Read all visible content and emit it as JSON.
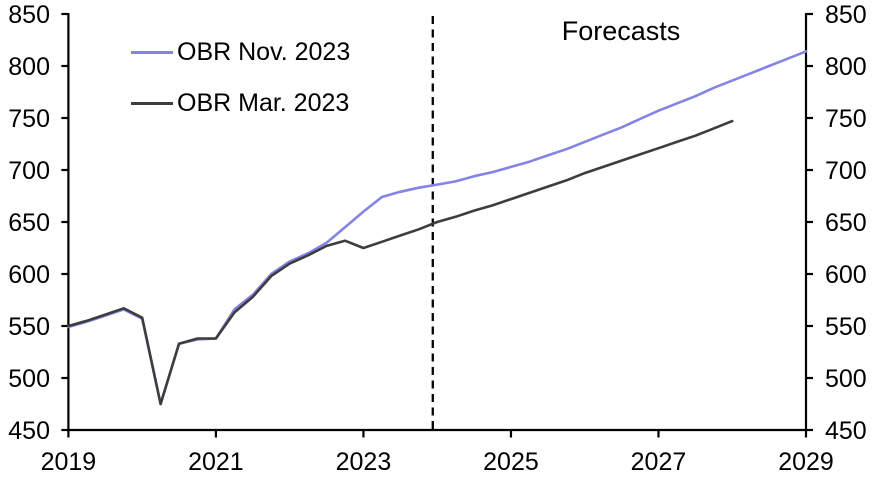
{
  "chart_data": {
    "type": "line",
    "title": "",
    "xlabel": "",
    "ylabel": "",
    "grid": false,
    "background": "#ffffff",
    "axis_color": "#000000",
    "legend_position": "top-left-inside",
    "x_axis": {
      "range": [
        2019,
        2029
      ],
      "tick_values": [
        2019,
        2021,
        2023,
        2025,
        2027,
        2029
      ],
      "tick_labels": [
        "2019",
        "2021",
        "2023",
        "2025",
        "2027",
        "2029"
      ]
    },
    "y_axis_left": {
      "range": [
        450,
        850
      ],
      "tick_values": [
        450,
        500,
        550,
        600,
        650,
        700,
        750,
        800,
        850
      ],
      "tick_labels": [
        "450",
        "500",
        "550",
        "600",
        "650",
        "700",
        "750",
        "800",
        "850"
      ]
    },
    "y_axis_right": {
      "range": [
        450,
        850
      ],
      "tick_values": [
        450,
        500,
        550,
        600,
        650,
        700,
        750,
        800,
        850
      ],
      "tick_labels": [
        "450",
        "500",
        "550",
        "600",
        "650",
        "700",
        "750",
        "800",
        "850"
      ]
    },
    "series": [
      {
        "name": "OBR Nov. 2023",
        "color": "#8484e6",
        "width": 2.6,
        "x": [
          2019,
          2019.25,
          2019.5,
          2019.75,
          2020,
          2020.25,
          2020.5,
          2020.75,
          2021,
          2021.25,
          2021.5,
          2021.75,
          2022,
          2022.25,
          2022.5,
          2022.75,
          2023,
          2023.25,
          2023.5,
          2023.75,
          2024,
          2024.25,
          2024.5,
          2024.75,
          2025,
          2025.25,
          2025.5,
          2025.75,
          2026,
          2026.25,
          2026.5,
          2026.75,
          2027,
          2027.25,
          2027.5,
          2027.75,
          2028,
          2028.25,
          2028.5,
          2028.75,
          2029
        ],
        "values": [
          549,
          554,
          560,
          566,
          557,
          475,
          533,
          537,
          538,
          566,
          580,
          600,
          612,
          620,
          630,
          645,
          660,
          674,
          679,
          683,
          686,
          689,
          694,
          698,
          703,
          708,
          714,
          720,
          727,
          734,
          741,
          749,
          757,
          764,
          771,
          779,
          786,
          793,
          800,
          807,
          814
        ]
      },
      {
        "name": "OBR Mar. 2023",
        "color": "#3d3d3d",
        "width": 2.6,
        "x": [
          2019,
          2019.25,
          2019.5,
          2019.75,
          2020,
          2020.25,
          2020.5,
          2020.75,
          2021,
          2021.25,
          2021.5,
          2021.75,
          2022,
          2022.25,
          2022.5,
          2022.75,
          2023,
          2023.25,
          2023.5,
          2023.75,
          2024,
          2024.25,
          2024.5,
          2024.75,
          2025,
          2025.25,
          2025.5,
          2025.75,
          2026,
          2026.25,
          2026.5,
          2026.75,
          2027,
          2027.25,
          2027.5,
          2027.75,
          2028
        ],
        "values": [
          550,
          555,
          561,
          567,
          558,
          475,
          533,
          538,
          538,
          563,
          578,
          598,
          610,
          618,
          627,
          632,
          625,
          631,
          637,
          643,
          650,
          655,
          661,
          666,
          672,
          678,
          684,
          690,
          697,
          703,
          709,
          715,
          721,
          727,
          733,
          740,
          747
        ]
      }
    ],
    "annotations": [
      {
        "type": "label",
        "text": "Forecasts"
      },
      {
        "type": "vline-dashed",
        "x": 2023.94,
        "color": "#000000"
      }
    ]
  }
}
